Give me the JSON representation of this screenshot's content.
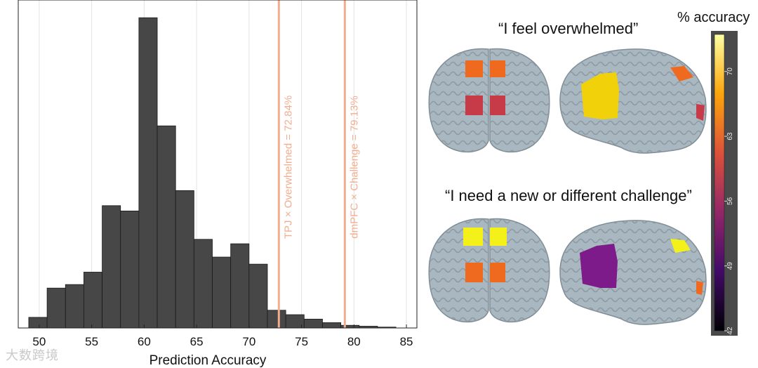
{
  "chart_data": {
    "type": "bar",
    "xlabel": "Prediction Accuracy",
    "ylabel": "",
    "xlim": [
      48,
      86
    ],
    "x_ticks": [
      50,
      55,
      60,
      65,
      70,
      75,
      80,
      85
    ],
    "grid": "vertical",
    "bin_width": 1.75,
    "bins": [
      {
        "x0": 49.0,
        "value": 12
      },
      {
        "x0": 50.75,
        "value": 45
      },
      {
        "x0": 52.5,
        "value": 49
      },
      {
        "x0": 54.25,
        "value": 63
      },
      {
        "x0": 56.0,
        "value": 138
      },
      {
        "x0": 57.75,
        "value": 132
      },
      {
        "x0": 59.5,
        "value": 350
      },
      {
        "x0": 61.25,
        "value": 228
      },
      {
        "x0": 63.0,
        "value": 155
      },
      {
        "x0": 64.75,
        "value": 100
      },
      {
        "x0": 66.5,
        "value": 80
      },
      {
        "x0": 68.25,
        "value": 95
      },
      {
        "x0": 70.0,
        "value": 72
      },
      {
        "x0": 71.75,
        "value": 20
      },
      {
        "x0": 73.5,
        "value": 15
      },
      {
        "x0": 75.25,
        "value": 10
      },
      {
        "x0": 77.0,
        "value": 6
      },
      {
        "x0": 78.75,
        "value": 3
      },
      {
        "x0": 80.5,
        "value": 2
      },
      {
        "x0": 82.25,
        "value": 1
      }
    ],
    "ymax": 370,
    "bar_color": "#474747",
    "reference_lines": [
      {
        "x": 72.84,
        "label": "TPJ × Overwhelmed = 72.84%"
      },
      {
        "x": 79.13,
        "label": "dmPFC × Challenge = 79.13%"
      }
    ],
    "line_color": "#f2ad8f"
  },
  "brain_panels": [
    {
      "caption": "“I feel overwhelmed”"
    },
    {
      "caption": "“I need a new or different challenge”"
    }
  ],
  "colorbar": {
    "title": "% accuracy",
    "ticks": [
      "70",
      "63",
      "56",
      "49",
      "42"
    ],
    "min": 42,
    "max": 74
  },
  "watermark": "大数跨境"
}
